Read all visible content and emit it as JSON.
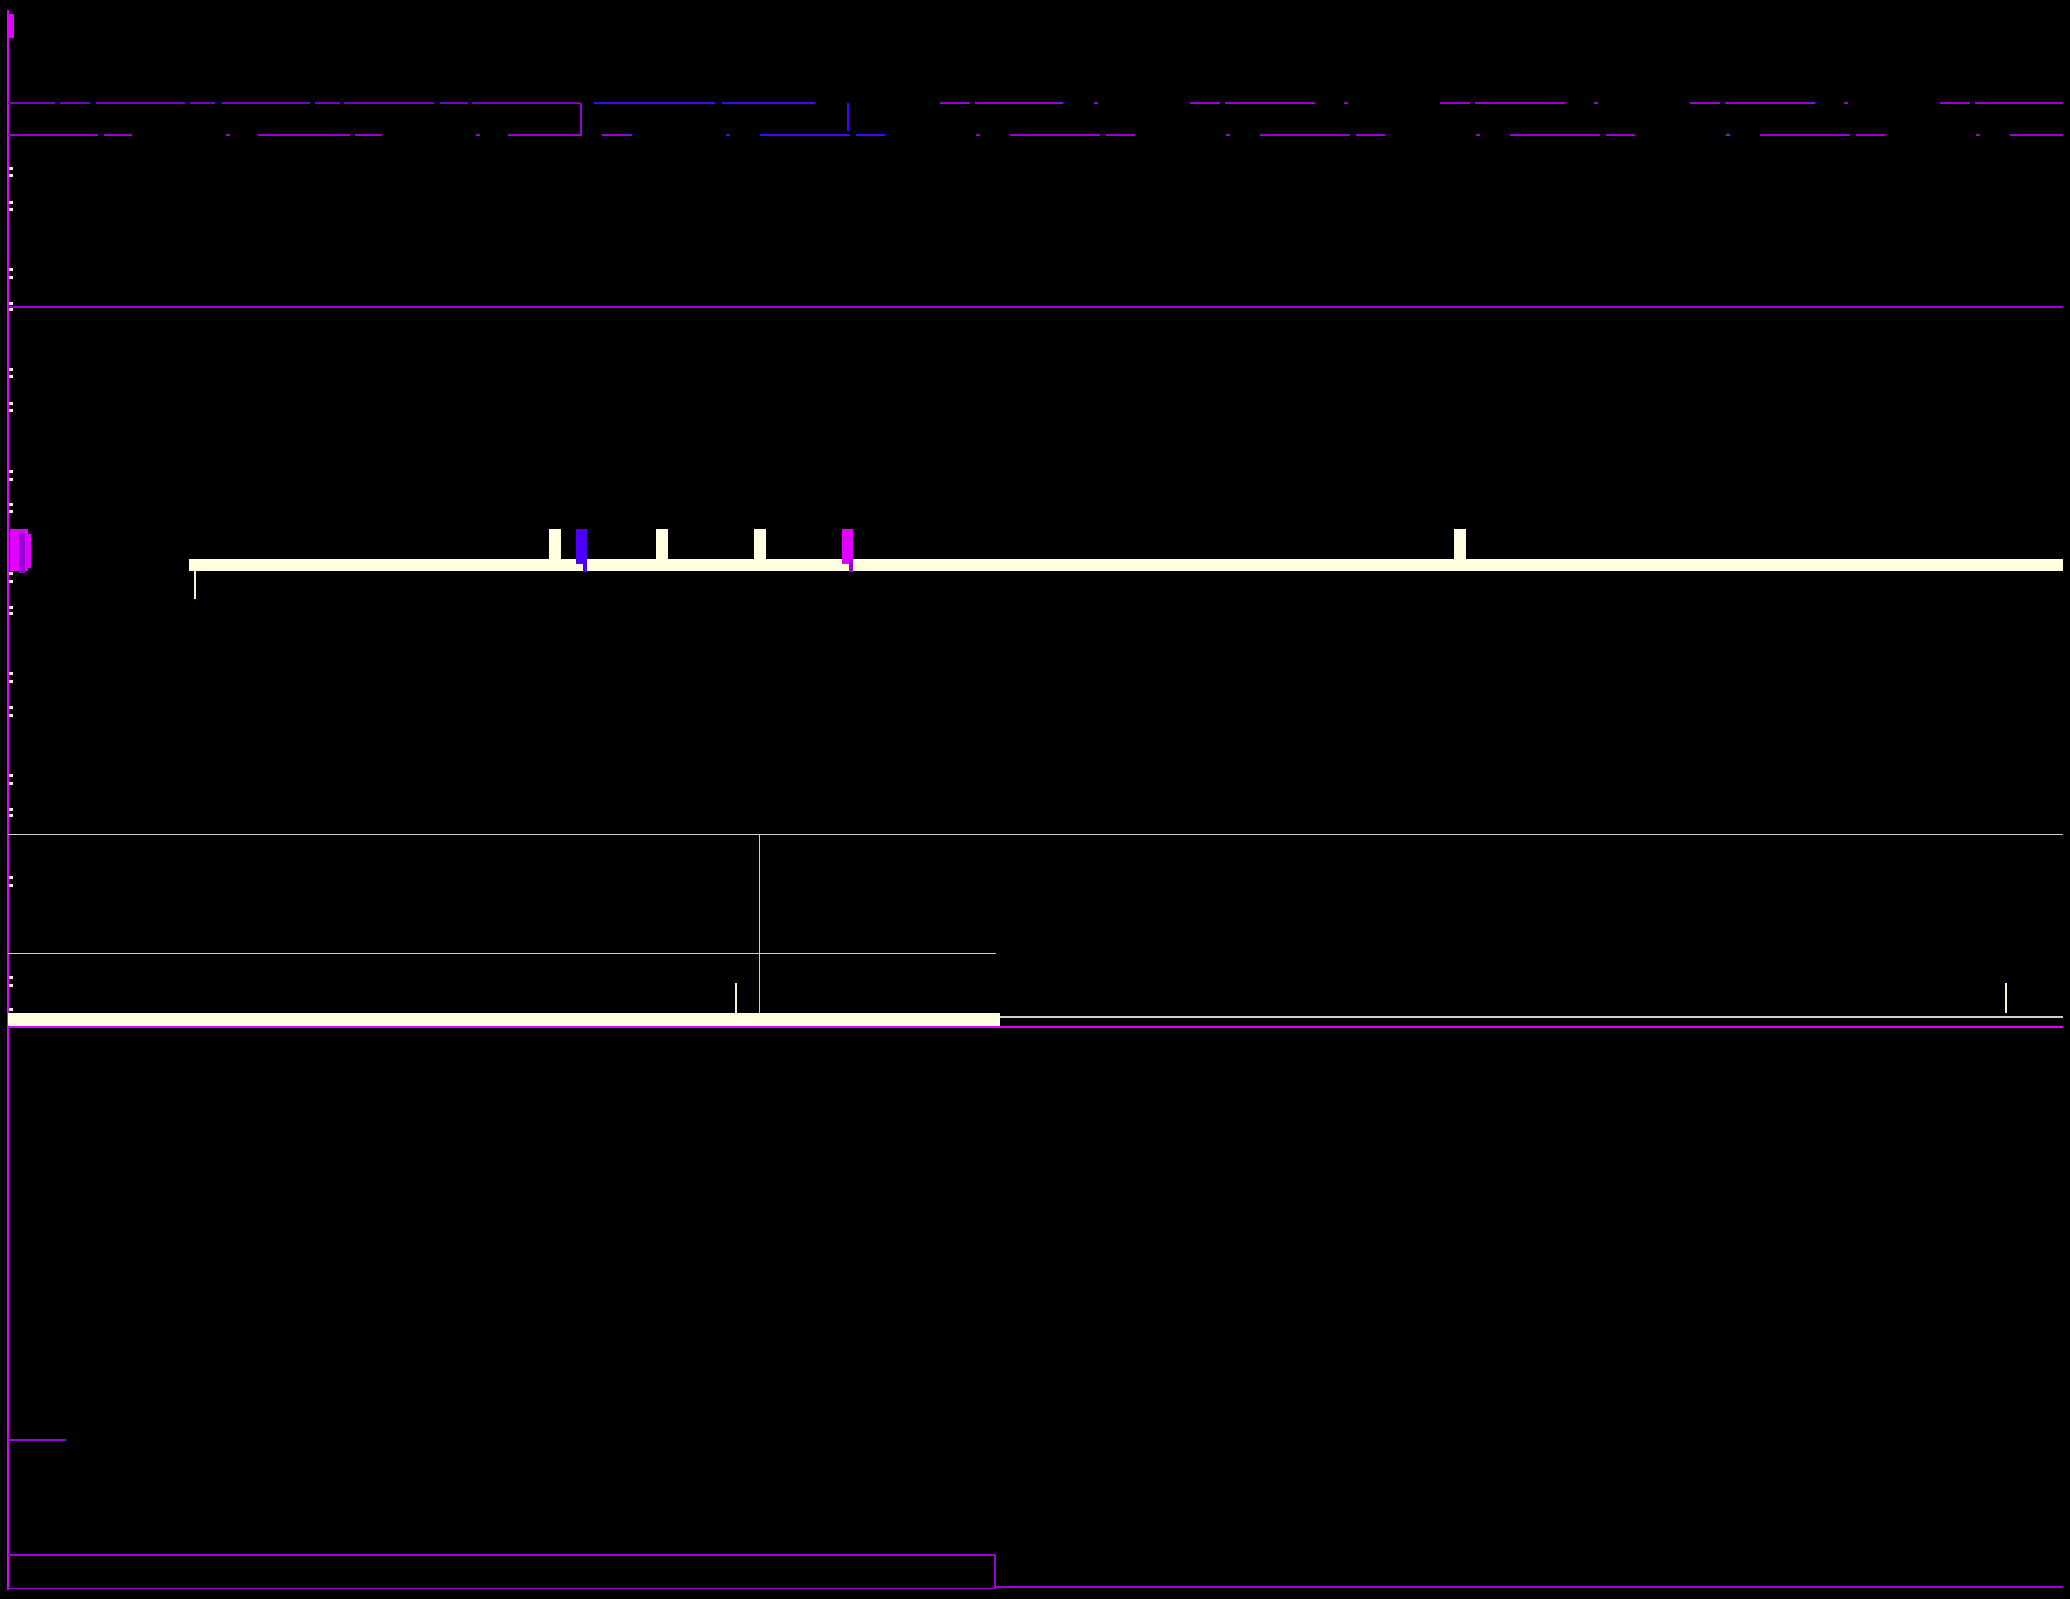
{
  "canvas": {
    "background": "#000000"
  },
  "palette": {
    "magenta": "#E000FF",
    "purple": "#9B00D9",
    "violet": "#7A00C8",
    "blue": "#4B00FF",
    "cream": "#FFFFE0",
    "cream_dim": "#F3F3C8",
    "gray_line": "#C9D2C9"
  },
  "timeline": {
    "markers": [
      {
        "name": "marker-1",
        "color": "cream"
      },
      {
        "name": "marker-2",
        "color": "blue"
      },
      {
        "name": "marker-3",
        "color": "cream"
      },
      {
        "name": "marker-4",
        "color": "cream"
      },
      {
        "name": "marker-5",
        "color": "magenta"
      },
      {
        "name": "marker-6",
        "color": "cream"
      }
    ]
  }
}
